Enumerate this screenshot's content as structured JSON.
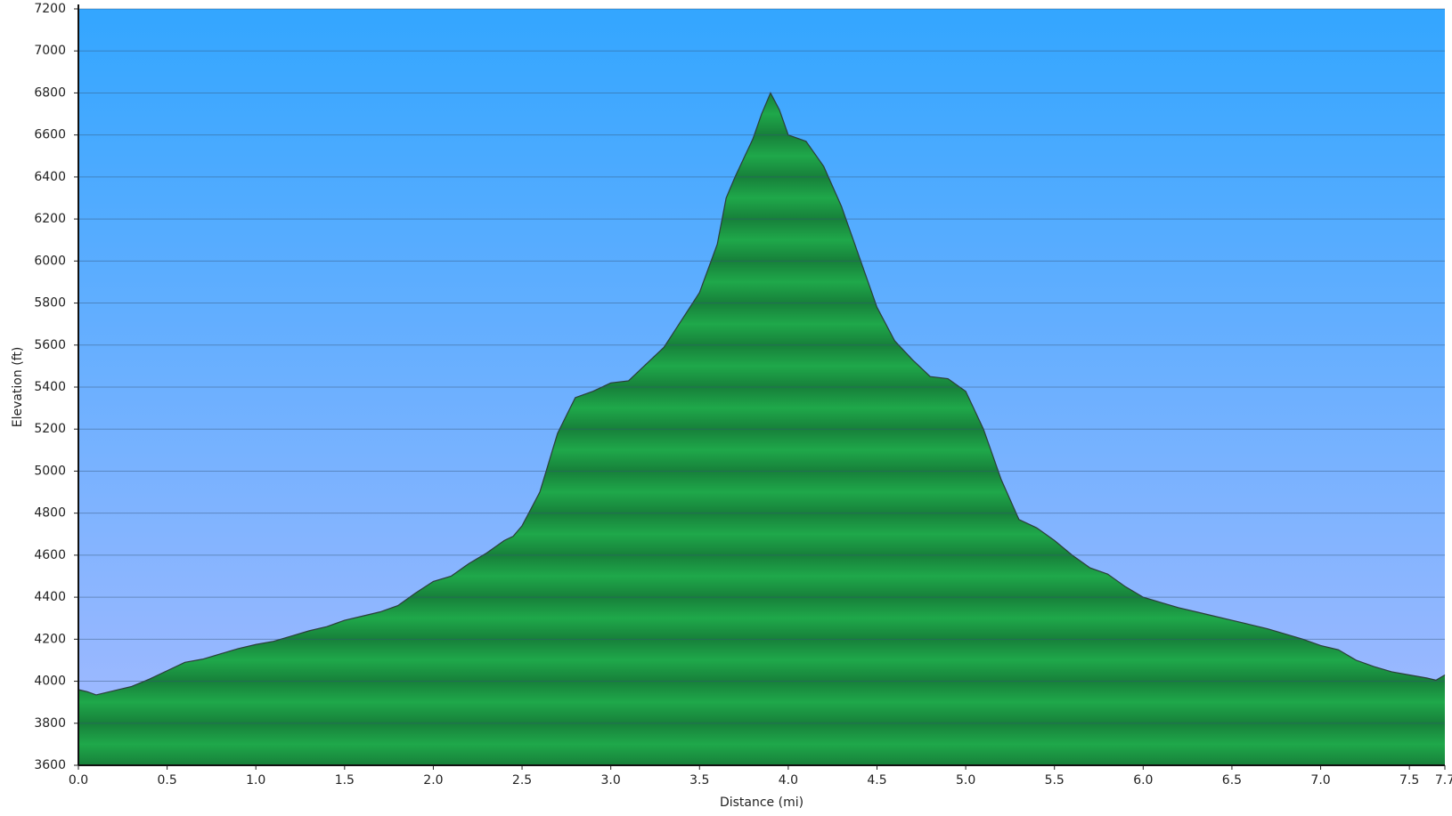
{
  "chart_data": {
    "type": "area",
    "xlabel": "Distance   (mi)",
    "ylabel": "Elevation (ft)",
    "x": [
      0.0,
      0.05,
      0.1,
      0.2,
      0.3,
      0.4,
      0.5,
      0.6,
      0.7,
      0.8,
      0.9,
      1.0,
      1.1,
      1.2,
      1.3,
      1.4,
      1.5,
      1.6,
      1.7,
      1.8,
      1.9,
      2.0,
      2.1,
      2.2,
      2.3,
      2.4,
      2.45,
      2.5,
      2.6,
      2.7,
      2.8,
      2.9,
      3.0,
      3.1,
      3.2,
      3.3,
      3.4,
      3.5,
      3.6,
      3.65,
      3.7,
      3.8,
      3.85,
      3.9,
      3.95,
      4.0,
      4.1,
      4.2,
      4.3,
      4.4,
      4.5,
      4.6,
      4.7,
      4.8,
      4.9,
      5.0,
      5.1,
      5.2,
      5.3,
      5.4,
      5.5,
      5.6,
      5.7,
      5.8,
      5.9,
      6.0,
      6.1,
      6.2,
      6.3,
      6.4,
      6.5,
      6.6,
      6.7,
      6.8,
      6.9,
      7.0,
      7.1,
      7.2,
      7.3,
      7.4,
      7.5,
      7.6,
      7.65,
      7.7
    ],
    "values": [
      3960,
      3950,
      3935,
      3955,
      3975,
      4010,
      4050,
      4090,
      4105,
      4130,
      4155,
      4175,
      4190,
      4215,
      4240,
      4260,
      4290,
      4310,
      4330,
      4360,
      4420,
      4475,
      4500,
      4560,
      4610,
      4670,
      4690,
      4740,
      4900,
      5180,
      5350,
      5380,
      5420,
      5430,
      5510,
      5590,
      5720,
      5850,
      6080,
      6300,
      6400,
      6580,
      6700,
      6800,
      6720,
      6600,
      6570,
      6450,
      6260,
      6020,
      5780,
      5620,
      5530,
      5450,
      5440,
      5380,
      5200,
      4960,
      4770,
      4730,
      4670,
      4600,
      4540,
      4510,
      4450,
      4400,
      4375,
      4350,
      4330,
      4310,
      4290,
      4270,
      4250,
      4225,
      4200,
      4170,
      4150,
      4100,
      4070,
      4045,
      4030,
      4015,
      4005,
      4030
    ],
    "color": "#1fa84a",
    "band_color": "#17803a",
    "line_color": "#2c3e3a",
    "xlim": [
      0,
      7.7
    ],
    "ylim": [
      3600,
      7200
    ],
    "xticks": [
      {
        "value": 0,
        "label": "0.0"
      },
      0.5,
      {
        "value": 1,
        "label": "1.0"
      },
      1.5,
      {
        "value": 2,
        "label": "2.0"
      },
      2.5,
      {
        "value": 3,
        "label": "3.0"
      },
      3.5,
      {
        "value": 4,
        "label": "4.0"
      },
      4.5,
      {
        "value": 5,
        "label": "5.0"
      },
      5.5,
      {
        "value": 6,
        "label": "6.0"
      },
      6.5,
      {
        "value": 7,
        "label": "7.0"
      },
      7.5,
      7.7
    ],
    "yticks": [
      3600,
      3800,
      4000,
      4200,
      4400,
      4600,
      4800,
      5000,
      5200,
      5400,
      5600,
      5800,
      6000,
      6200,
      6400,
      6600,
      6800,
      7000,
      7200
    ],
    "grid": true
  }
}
